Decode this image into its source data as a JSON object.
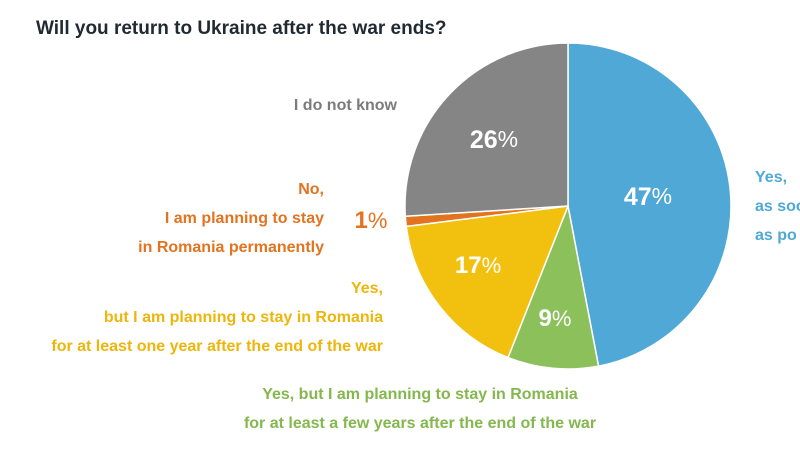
{
  "title": "Will you return to Ukraine after the war ends?",
  "chart_data": {
    "type": "pie",
    "title": "Will you return to Ukraine after the war ends?",
    "slices": [
      {
        "name": "Yes, as soon as possible",
        "visible_lines": [
          "Yes,",
          "as soo",
          "as po"
        ],
        "value": 47,
        "value_label": "47",
        "color": "#4fa8d5"
      },
      {
        "name": "Yes, but I am planning to stay in Romania for at least a few years after the end of the war",
        "visible_lines": [
          "Yes, but I am planning to stay in Romania",
          "for at least a few years after the end of the war"
        ],
        "value": 9,
        "value_label": "9",
        "color": "#8cc05a"
      },
      {
        "name": "Yes, but I am planning to stay in Romania for at least one year after the end of the war",
        "visible_lines": [
          "Yes,",
          "but I am planning to stay in Romania",
          "for at least one year after the end of the war"
        ],
        "value": 17,
        "value_label": "17",
        "color": "#f2c110"
      },
      {
        "name": "No, I am planning to stay in Romania permanently",
        "visible_lines": [
          "No,",
          "I am planning to stay",
          "in Romania permanently"
        ],
        "value": 1,
        "value_label": "1",
        "color": "#e2731f"
      },
      {
        "name": "I do not know",
        "visible_lines": [
          "I do not know"
        ],
        "value": 26,
        "value_label": "26",
        "color": "#858585"
      }
    ],
    "percent_sign": "%"
  }
}
